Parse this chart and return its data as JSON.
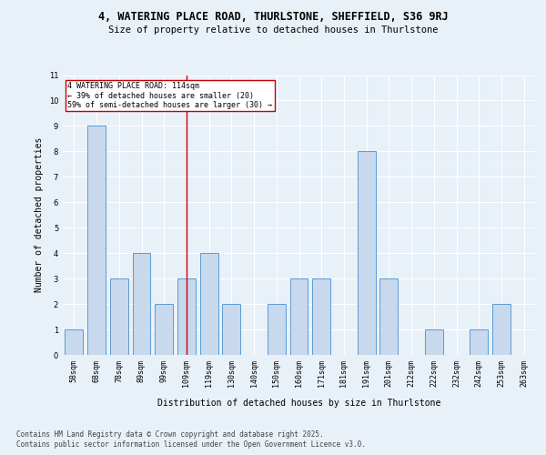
{
  "title1": "4, WATERING PLACE ROAD, THURLSTONE, SHEFFIELD, S36 9RJ",
  "title2": "Size of property relative to detached houses in Thurlstone",
  "xlabel": "Distribution of detached houses by size in Thurlstone",
  "ylabel": "Number of detached properties",
  "categories": [
    "58sqm",
    "68sqm",
    "78sqm",
    "89sqm",
    "99sqm",
    "109sqm",
    "119sqm",
    "130sqm",
    "140sqm",
    "150sqm",
    "160sqm",
    "171sqm",
    "181sqm",
    "191sqm",
    "201sqm",
    "212sqm",
    "222sqm",
    "232sqm",
    "242sqm",
    "253sqm",
    "263sqm"
  ],
  "values": [
    1,
    9,
    3,
    4,
    2,
    3,
    4,
    2,
    0,
    2,
    3,
    3,
    0,
    8,
    3,
    0,
    1,
    0,
    1,
    2,
    0
  ],
  "bar_color": "#c8d9ed",
  "bar_edge_color": "#5b9bd5",
  "highlight_index": 5,
  "highlight_line_color": "#cc0000",
  "ylim": [
    0,
    11
  ],
  "yticks": [
    0,
    1,
    2,
    3,
    4,
    5,
    6,
    7,
    8,
    9,
    10,
    11
  ],
  "annotation_box_color": "#ffffff",
  "annotation_edge_color": "#cc0000",
  "annotation_text1": "4 WATERING PLACE ROAD: 114sqm",
  "annotation_text2": "← 39% of detached houses are smaller (20)",
  "annotation_text3": "59% of semi-detached houses are larger (30) →",
  "footer1": "Contains HM Land Registry data © Crown copyright and database right 2025.",
  "footer2": "Contains public sector information licensed under the Open Government Licence v3.0.",
  "bg_color": "#e8f0f8",
  "plot_bg_color": "#e8f0f8",
  "grid_color": "#ffffff",
  "title1_fontsize": 8.5,
  "title2_fontsize": 7.5,
  "axis_label_fontsize": 7,
  "tick_fontsize": 6,
  "annotation_fontsize": 6,
  "footer_fontsize": 5.5
}
